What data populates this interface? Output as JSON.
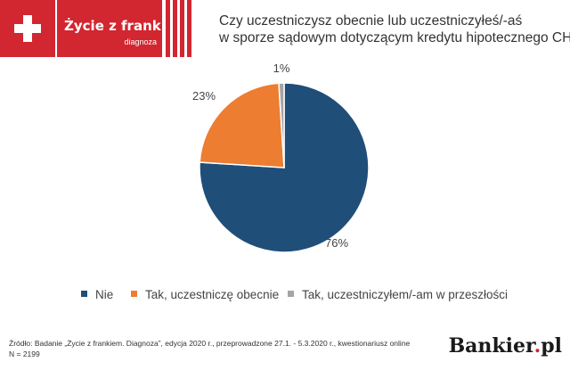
{
  "header": {
    "logo_name": "Życie z frankiem",
    "logo_sub": "diagnoza",
    "question_line1": "Czy uczestniczysz obecnie lub uczestniczyłeś/-aś",
    "question_line2": "w sporze sądowym dotyczącym kredytu hipotecznego CHF?"
  },
  "chart_data": {
    "type": "pie",
    "categories": [
      "Nie",
      "Tak, uczestniczę obecnie",
      "Tak, uczestniczyłem/-am w przeszłości"
    ],
    "values": [
      76,
      23,
      1
    ],
    "labels": [
      "76%",
      "23%",
      "1%"
    ],
    "colors": [
      "#1f4e79",
      "#ed7d31",
      "#a5a5a5"
    ],
    "legend_position": "bottom"
  },
  "legend": {
    "items": [
      {
        "label": "Nie",
        "color": "#1f4e79"
      },
      {
        "label": "Tak, uczestniczę obecnie",
        "color": "#ed7d31"
      },
      {
        "label": "Tak, uczestniczyłem/-am w przeszłości",
        "color": "#a5a5a5"
      }
    ]
  },
  "footer": {
    "source": "Źródło: Badanie „Życie z frankiem. Diagnoza”, edycja 2020 r., przeprowadzone 27.1. - 5.3.2020 r., kwestionariusz online",
    "n": "N = 2199",
    "brand_main": "Bankier",
    "brand_dot": ".",
    "brand_tld": "pl"
  }
}
